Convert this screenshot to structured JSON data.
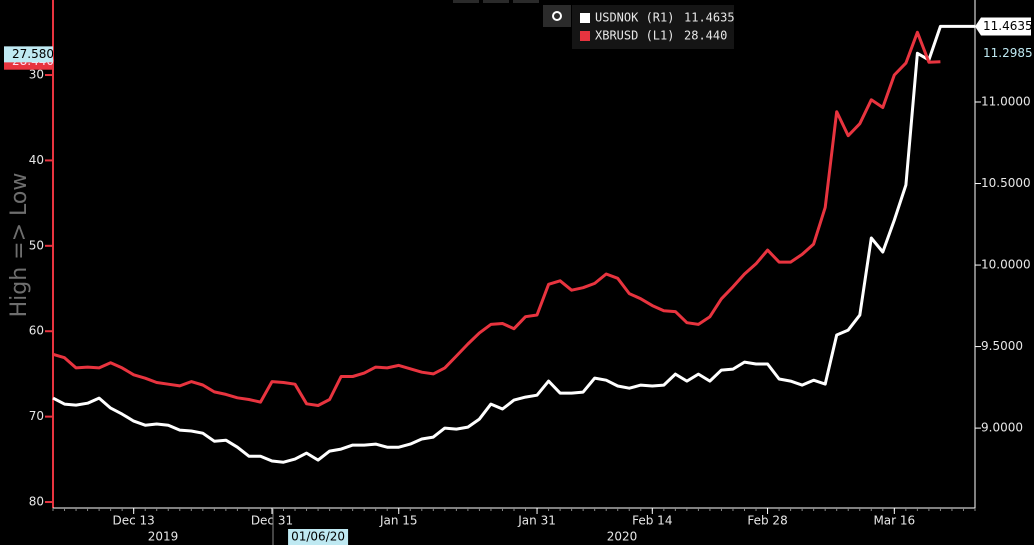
{
  "chart_data": {
    "type": "line",
    "y_label": "High => Low",
    "x": [
      "2019-12-04",
      "2019-12-05",
      "2019-12-06",
      "2019-12-09",
      "2019-12-10",
      "2019-12-11",
      "2019-12-12",
      "2019-12-13",
      "2019-12-16",
      "2019-12-17",
      "2019-12-18",
      "2019-12-19",
      "2019-12-20",
      "2019-12-23",
      "2019-12-24",
      "2019-12-25",
      "2019-12-26",
      "2019-12-27",
      "2019-12-30",
      "2019-12-31",
      "2020-01-01",
      "2020-01-02",
      "2020-01-03",
      "2020-01-06",
      "2020-01-07",
      "2020-01-08",
      "2020-01-09",
      "2020-01-10",
      "2020-01-13",
      "2020-01-14",
      "2020-01-15",
      "2020-01-16",
      "2020-01-17",
      "2020-01-20",
      "2020-01-21",
      "2020-01-22",
      "2020-01-23",
      "2020-01-24",
      "2020-01-27",
      "2020-01-28",
      "2020-01-29",
      "2020-01-30",
      "2020-01-31",
      "2020-02-03",
      "2020-02-04",
      "2020-02-05",
      "2020-02-06",
      "2020-02-07",
      "2020-02-10",
      "2020-02-11",
      "2020-02-12",
      "2020-02-13",
      "2020-02-14",
      "2020-02-17",
      "2020-02-18",
      "2020-02-19",
      "2020-02-20",
      "2020-02-21",
      "2020-02-24",
      "2020-02-25",
      "2020-02-26",
      "2020-02-27",
      "2020-02-28",
      "2020-03-02",
      "2020-03-03",
      "2020-03-04",
      "2020-03-05",
      "2020-03-06",
      "2020-03-09",
      "2020-03-10",
      "2020-03-11",
      "2020-03-12",
      "2020-03-13",
      "2020-03-16",
      "2020-03-17",
      "2020-03-18",
      "2020-03-19",
      "2020-03-20",
      "2020-03-23",
      "2020-03-24",
      "2020-03-25"
    ],
    "series": [
      {
        "name": "USDNOK (R1)",
        "color": "#ffffff",
        "axis": "y2",
        "last": 11.4635,
        "values": [
          9.184,
          9.147,
          9.141,
          9.153,
          9.184,
          9.123,
          9.086,
          9.043,
          9.018,
          9.025,
          9.018,
          8.988,
          8.982,
          8.969,
          8.92,
          8.926,
          8.883,
          8.828,
          8.828,
          8.798,
          8.791,
          8.81,
          8.847,
          8.804,
          8.859,
          8.871,
          8.896,
          8.896,
          8.902,
          8.883,
          8.883,
          8.902,
          8.933,
          8.945,
          9.0,
          8.994,
          9.006,
          9.055,
          9.147,
          9.117,
          9.172,
          9.19,
          9.202,
          9.288,
          9.215,
          9.215,
          9.221,
          9.307,
          9.294,
          9.258,
          9.245,
          9.264,
          9.258,
          9.264,
          9.331,
          9.288,
          9.331,
          9.288,
          9.356,
          9.362,
          9.405,
          9.393,
          9.393,
          9.301,
          9.288,
          9.264,
          9.294,
          9.27,
          9.571,
          9.601,
          9.693,
          10.166,
          10.08,
          10.276,
          10.491,
          11.2985,
          11.258,
          11.4635,
          11.4635,
          11.4635,
          11.4635
        ]
      },
      {
        "name": "XBRUSD (L1)",
        "color": "#e8343f",
        "axis": "y",
        "last": {
          "value": 28.44,
          "label": "28.440"
        },
        "values": [
          62.7,
          63.1,
          64.3,
          64.2,
          64.3,
          63.7,
          64.3,
          65.1,
          65.5,
          66.0,
          66.2,
          66.4,
          65.9,
          66.3,
          67.1,
          67.4,
          67.8,
          68.0,
          68.3,
          65.9,
          66.0,
          66.2,
          68.5,
          68.7,
          68.0,
          65.3,
          65.3,
          64.9,
          64.2,
          64.3,
          64.0,
          64.4,
          64.8,
          65.0,
          64.3,
          62.9,
          61.5,
          60.2,
          59.2,
          59.1,
          59.7,
          58.3,
          58.1,
          54.5,
          54.1,
          55.2,
          54.9,
          54.4,
          53.3,
          53.8,
          55.6,
          56.2,
          57.0,
          57.6,
          57.7,
          59.0,
          59.2,
          58.3,
          56.2,
          54.8,
          53.3,
          52.1,
          50.5,
          51.9,
          51.9,
          51.0,
          49.8,
          45.5,
          34.3,
          37.1,
          35.7,
          32.9,
          33.8,
          30.0,
          28.6,
          25.0,
          28.5,
          28.44,
          null,
          null,
          null
        ]
      }
    ],
    "xlim": [
      "2019-12-04",
      "2020-03-25"
    ],
    "xticks": [
      {
        "value": "2019-12-13",
        "label": "Dec 13"
      },
      {
        "value": "2019-12-31",
        "label": "Dec 31"
      },
      {
        "value": "2020-01-15",
        "label": "Jan 15"
      },
      {
        "value": "2020-01-31",
        "label": "Jan 31"
      },
      {
        "value": "2020-02-14",
        "label": "Feb 14"
      },
      {
        "value": "2020-02-28",
        "label": "Feb 28"
      },
      {
        "value": "2020-03-16",
        "label": "Mar 16"
      }
    ],
    "years": [
      "2019",
      "2020"
    ],
    "date_marker": {
      "value": "2020-01-06",
      "label": "01/06/20"
    },
    "ylim": [
      21.8,
      80.7
    ],
    "y_inverted": true,
    "yticks": [
      30,
      40,
      50,
      60,
      70,
      80
    ],
    "y2lim": [
      8.51,
      11.595
    ],
    "y2ticks": [
      {
        "value": 9.0,
        "label": "9.0000"
      },
      {
        "value": 9.5,
        "label": "9.5000"
      },
      {
        "value": 10.0,
        "label": "10.0000"
      },
      {
        "value": 10.5,
        "label": "10.5000"
      },
      {
        "value": 11.0,
        "label": "11.0000"
      }
    ],
    "y_tags": [
      {
        "value": 28.44,
        "label": "28.440",
        "color": "#e8343f"
      },
      {
        "value": 27.58,
        "label": "27.580",
        "color": "#bfe9f2"
      }
    ],
    "y2_tags": [
      {
        "value": 11.4635,
        "color": "#ffffff"
      },
      {
        "value": 11.2985,
        "color": "#bfe9f2"
      }
    ]
  }
}
